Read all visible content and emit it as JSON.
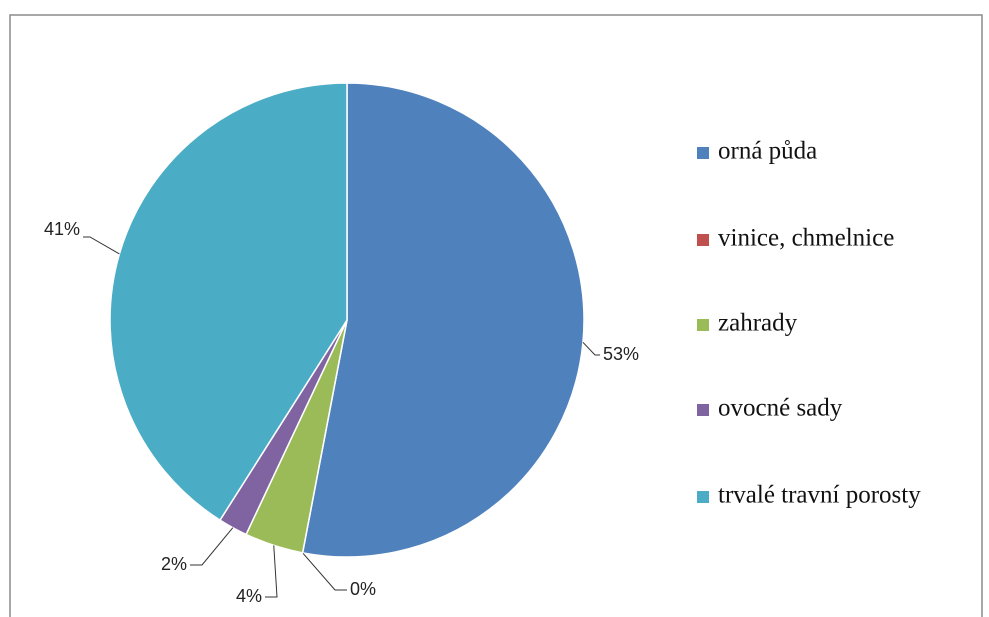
{
  "chart_data": {
    "type": "pie",
    "categories": [
      "orná půda",
      "vinice, chmelnice",
      "zahrady",
      "ovocné sady",
      "trvalé travní porosty"
    ],
    "values": [
      53,
      0,
      4,
      2,
      41
    ],
    "value_labels": [
      "53%",
      "0%",
      "4%",
      "2%",
      "41%"
    ],
    "colors": [
      "#4f81bd",
      "#c0504d",
      "#9bbb59",
      "#8064a2",
      "#4bacc6"
    ],
    "legend": "right"
  }
}
